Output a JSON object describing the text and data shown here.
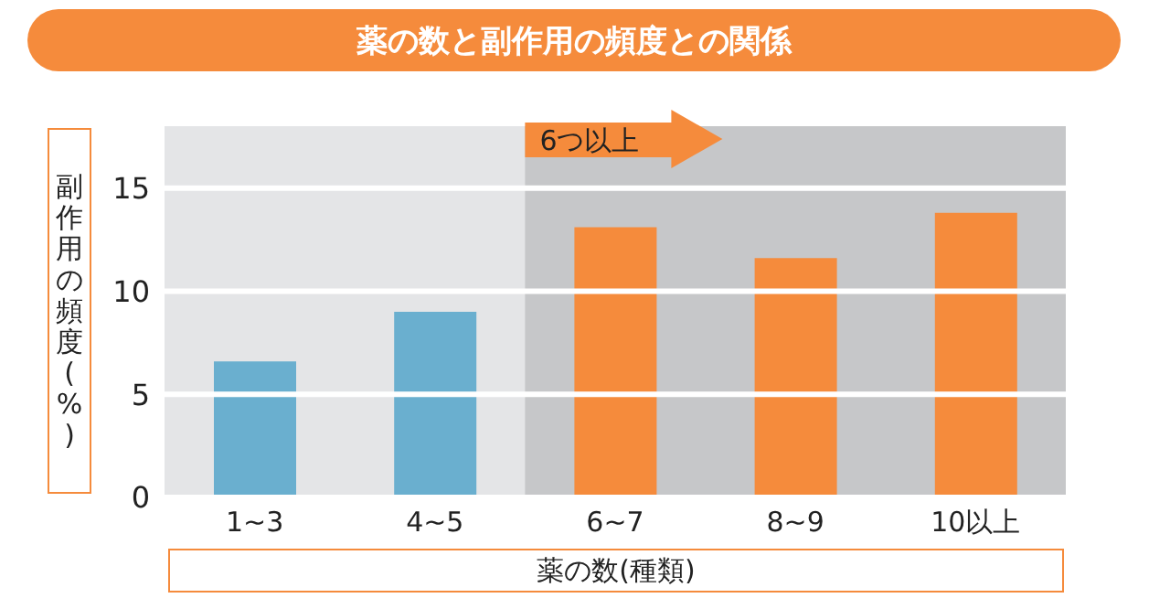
{
  "chart_data": {
    "type": "bar",
    "title": "薬の数と副作用の頻度との関係",
    "xlabel": "薬の数(種類)",
    "ylabel": "副作用の頻度(%)",
    "categories": [
      "1~3",
      "4~5",
      "6~7",
      "8~9",
      "10以上"
    ],
    "values": [
      6.6,
      9.0,
      13.1,
      11.6,
      13.8
    ],
    "colors": [
      "#6aafcf",
      "#6aafcf",
      "#f58b3c",
      "#f58b3c",
      "#f58b3c"
    ],
    "ylim": [
      0,
      18
    ],
    "yticks": [
      0,
      5,
      10,
      15
    ],
    "grid": "y",
    "bands": [
      {
        "axis": "x",
        "from": "6~7",
        "to": "10以上",
        "label": "6つ以上",
        "color": "#c6c7c9"
      }
    ]
  }
}
